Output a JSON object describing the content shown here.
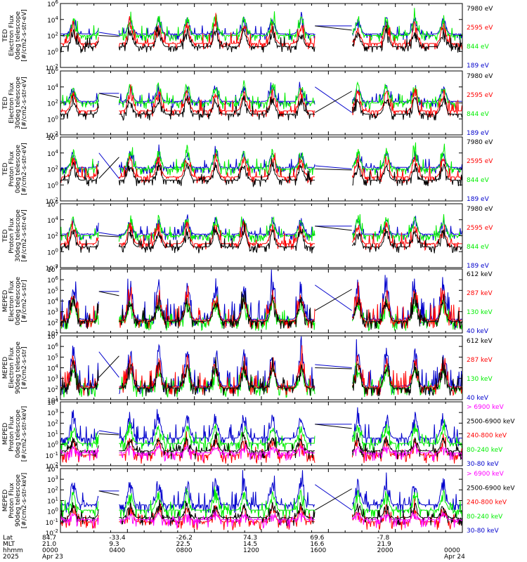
{
  "panels": [
    {
      "id": "ted-electron-0deg",
      "ylabel": [
        "TED",
        "Electron Flux",
        "0deg telescope",
        "[#/cm2-s-str-eV]"
      ],
      "ylim_exp": [
        -2,
        6
      ],
      "yticks": [
        "10^6",
        "10^4",
        "10^2",
        "10^0",
        "10^-2"
      ],
      "legend": [
        {
          "label": "7980 eV",
          "color": "#000000"
        },
        {
          "label": "2595 eV",
          "color": "#ff0000"
        },
        {
          "label": "844 eV",
          "color": "#00ee00"
        },
        {
          "label": "189 eV",
          "color": "#0000cc"
        }
      ]
    },
    {
      "id": "ted-electron-30deg",
      "ylabel": [
        "TED",
        "Electron Flux",
        "30deg telescope",
        "[#/cm2-s-str-eV]"
      ],
      "ylim_exp": [
        -2,
        6
      ],
      "yticks": [
        "10^6",
        "10^4",
        "10^2",
        "10^0",
        "10^-2"
      ],
      "legend": [
        {
          "label": "7980 eV",
          "color": "#000000"
        },
        {
          "label": "2595 eV",
          "color": "#ff0000"
        },
        {
          "label": "844 eV",
          "color": "#00ee00"
        },
        {
          "label": "189 eV",
          "color": "#0000cc"
        }
      ]
    },
    {
      "id": "ted-proton-0deg",
      "ylabel": [
        "TED",
        "Proton Flux",
        "0deg telescope",
        "[#/cm2-s-str-eV]"
      ],
      "ylim_exp": [
        -2,
        6
      ],
      "yticks": [
        "10^6",
        "10^4",
        "10^2",
        "10^0",
        "10^-2"
      ],
      "legend": [
        {
          "label": "7980 eV",
          "color": "#000000"
        },
        {
          "label": "2595 eV",
          "color": "#ff0000"
        },
        {
          "label": "844 eV",
          "color": "#00ee00"
        },
        {
          "label": "189 eV",
          "color": "#0000cc"
        }
      ]
    },
    {
      "id": "ted-proton-30deg",
      "ylabel": [
        "TED",
        "Proton Flux",
        "30deg telescope",
        "[#/cm2-s-str-eV]"
      ],
      "ylim_exp": [
        -2,
        6
      ],
      "yticks": [
        "10^6",
        "10^4",
        "10^2",
        "10^0",
        "10^-2"
      ],
      "legend": [
        {
          "label": "7980 eV",
          "color": "#000000"
        },
        {
          "label": "2595 eV",
          "color": "#ff0000"
        },
        {
          "label": "844 eV",
          "color": "#00ee00"
        },
        {
          "label": "189 eV",
          "color": "#0000cc"
        }
      ]
    },
    {
      "id": "meped-electron-0deg",
      "ylabel": [
        "MEPED",
        "Electron Flux",
        "0deg telescope",
        "[#/cm2-s-str]"
      ],
      "ylim_exp": [
        1,
        7
      ],
      "yticks": [
        "10^7",
        "10^6",
        "10^5",
        "10^4",
        "10^3",
        "10^2",
        "10^1"
      ],
      "legend": [
        {
          "label": "612 keV",
          "color": "#000000"
        },
        {
          "label": "287 keV",
          "color": "#ff0000"
        },
        {
          "label": "130 keV",
          "color": "#00ee00"
        },
        {
          "label": "40 keV",
          "color": "#0000cc"
        }
      ]
    },
    {
      "id": "meped-electron-90deg",
      "ylabel": [
        "MEPED",
        "Electron Flux",
        "90deg telescope",
        "[#/cm2-s-str]"
      ],
      "ylim_exp": [
        1,
        7
      ],
      "yticks": [
        "10^7",
        "10^6",
        "10^5",
        "10^4",
        "10^3",
        "10^2",
        "10^1"
      ],
      "legend": [
        {
          "label": "612 keV",
          "color": "#000000"
        },
        {
          "label": "287 keV",
          "color": "#ff0000"
        },
        {
          "label": "130 keV",
          "color": "#00ee00"
        },
        {
          "label": "40 keV",
          "color": "#0000cc"
        }
      ]
    },
    {
      "id": "meped-proton-0deg",
      "ylabel": [
        "MEPED",
        "Proton Flux",
        "0deg telescope",
        "[#/cm2-s-str-keV]"
      ],
      "ylim_exp": [
        -2,
        4
      ],
      "yticks": [
        "10^4",
        "10^3",
        "10^2",
        "10^1",
        "10^0",
        "10^-1",
        "10^-2"
      ],
      "legend": [
        {
          "label": "> 6900 keV",
          "color": "#ff00ff"
        },
        {
          "label": "2500-6900 keV",
          "color": "#000000"
        },
        {
          "label": "240-800 keV",
          "color": "#ff0000"
        },
        {
          "label": "80-240 keV",
          "color": "#00ee00"
        },
        {
          "label": "30-80 keV",
          "color": "#0000cc"
        }
      ]
    },
    {
      "id": "meped-proton-90deg",
      "ylabel": [
        "MEPED",
        "Proton Flux",
        "90deg telescope",
        "[#/cm2-s-str-keV]"
      ],
      "ylim_exp": [
        -2,
        4
      ],
      "yticks": [
        "10^4",
        "10^3",
        "10^2",
        "10^1",
        "10^0",
        "10^-1",
        "10^-2"
      ],
      "legend": [
        {
          "label": "> 6900 keV",
          "color": "#ff00ff"
        },
        {
          "label": "2500-6900 keV",
          "color": "#000000"
        },
        {
          "label": "240-800 keV",
          "color": "#ff0000"
        },
        {
          "label": "80-240 keV",
          "color": "#00ee00"
        },
        {
          "label": "30-80 keV",
          "color": "#0000cc"
        }
      ]
    }
  ],
  "xaxis": {
    "row_labels": [
      "Lat",
      "MLT",
      "hhmm",
      "2025"
    ],
    "ticks": [
      {
        "hour": 0,
        "lat": "84.7",
        "mlt": "21.0",
        "hhmm": "0000",
        "date": "Apr 23"
      },
      {
        "hour": 4,
        "lat": "-33.4",
        "mlt": "9.3",
        "hhmm": "0400",
        "date": ""
      },
      {
        "hour": 8,
        "lat": "-26.2",
        "mlt": "22.5",
        "hhmm": "0800",
        "date": ""
      },
      {
        "hour": 12,
        "lat": "74.3",
        "mlt": "14.5",
        "hhmm": "1200",
        "date": ""
      },
      {
        "hour": 16,
        "lat": "69.6",
        "mlt": "16.6",
        "hhmm": "1600",
        "date": ""
      },
      {
        "hour": 20,
        "lat": "-7.8",
        "mlt": "21.9",
        "hhmm": "2000",
        "date": ""
      },
      {
        "hour": 24,
        "lat": "",
        "mlt": "",
        "hhmm": "0000",
        "date": "Apr 24"
      }
    ]
  },
  "chart_data": {
    "type": "line",
    "scale": "log",
    "x_unit": "hours UT",
    "xlim": [
      0,
      24
    ],
    "data_gaps_hours": [
      [
        2.3,
        3.5
      ],
      [
        15.2,
        17.4
      ]
    ]
  }
}
